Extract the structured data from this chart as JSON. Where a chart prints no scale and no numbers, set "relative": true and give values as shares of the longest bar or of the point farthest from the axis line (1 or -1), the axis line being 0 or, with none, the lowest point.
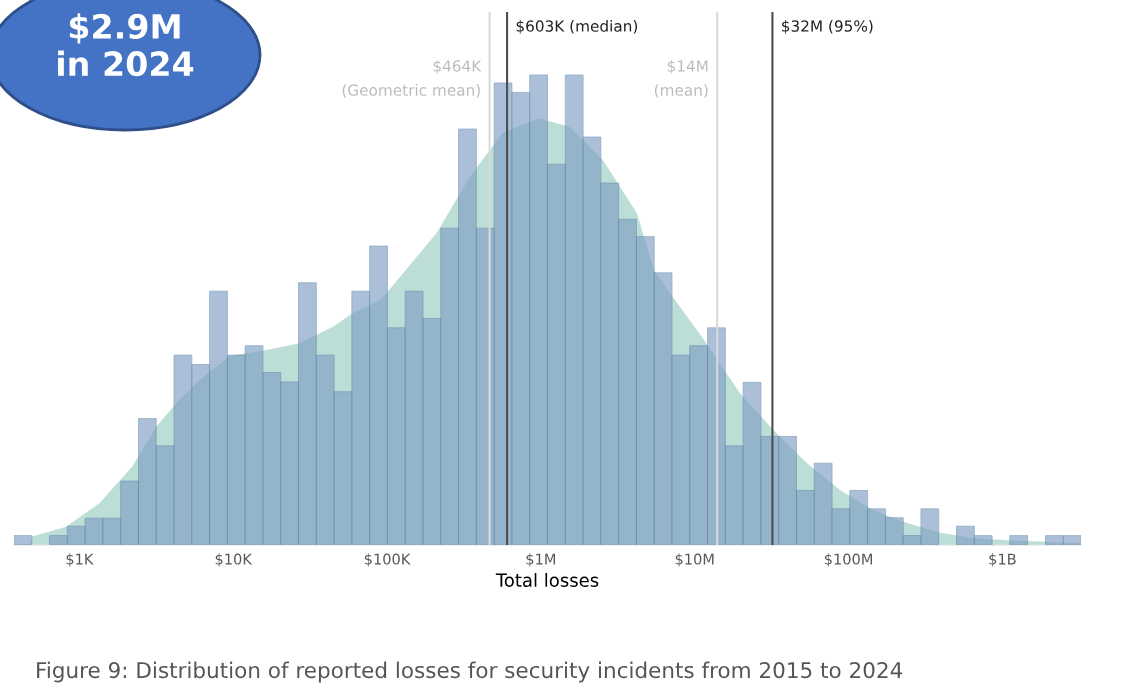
{
  "chart_data": {
    "type": "histogram",
    "relative": true,
    "log": "x",
    "xlabel": "Total losses",
    "xlim": [
      376,
      3243000000
    ],
    "xticks": [
      {
        "value": 1000,
        "label": "$1K"
      },
      {
        "value": 10000,
        "label": "$10K"
      },
      {
        "value": 100000,
        "label": "$100K"
      },
      {
        "value": 1000000,
        "label": "$1M"
      },
      {
        "value": 10000000,
        "label": "$10M"
      },
      {
        "value": 100000000,
        "label": "$100M"
      },
      {
        "value": 1000000000,
        "label": "$1B"
      }
    ],
    "tick_labels": "x",
    "grid": false,
    "series": [
      {
        "type": "area",
        "color": "#9fd0c6",
        "x": [
          473,
          494,
          819,
          1350,
          2210,
          3170,
          4280,
          6040,
          9470,
          16500,
          27000,
          44300,
          59700,
          89500,
          99300,
          210000,
          345000,
          565000,
          968000,
          1540000,
          2530000,
          4210000,
          5430000,
          6900000,
          11300000,
          19700000,
          32300000,
          53700000,
          88100000,
          144000000,
          240000000,
          394000000,
          646000000,
          1070000000,
          3210000000
        ],
        "values": [
          0,
          0.018,
          0.039,
          0.089,
          0.167,
          0.252,
          0.302,
          0.351,
          0.402,
          0.415,
          0.429,
          0.464,
          0.493,
          0.521,
          0.536,
          0.664,
          0.783,
          0.877,
          0.908,
          0.89,
          0.819,
          0.706,
          0.585,
          0.536,
          0.44,
          0.323,
          0.245,
          0.174,
          0.117,
          0.074,
          0.047,
          0.026,
          0.015,
          0.01,
          0.004
        ]
      },
      {
        "color": "#7f9fc4",
        "bins": [
          376,
          491,
          640,
          835,
          1090,
          1422,
          1856,
          2422,
          3161,
          4125,
          5383,
          7024,
          9166,
          11960,
          15610,
          20370,
          26580,
          34690,
          45270,
          59070,
          77090,
          100600,
          131300,
          171300,
          223600,
          291700,
          380700,
          496900,
          648400,
          846300,
          1104000,
          1441000,
          1881000,
          2454000,
          3203000,
          4178000,
          5453000,
          7117000,
          9286000,
          12120000,
          15810000,
          20640000,
          26930000,
          35150000,
          45860000,
          59840000,
          78100000,
          101900000,
          133000000,
          173600000,
          226500000,
          295500000,
          385700000,
          503200000,
          656800000,
          857000000,
          1118000000,
          1459000000,
          1905000000,
          2485000000,
          3243000000
        ],
        "values": [
          0.02,
          0,
          0.02,
          0.04,
          0.057,
          0.057,
          0.136,
          0.269,
          0.211,
          0.404,
          0.384,
          0.54,
          0.404,
          0.424,
          0.367,
          0.347,
          0.558,
          0.404,
          0.326,
          0.54,
          0.636,
          0.462,
          0.54,
          0.482,
          0.674,
          0.885,
          0.674,
          0.983,
          0.963,
          1.0,
          0.81,
          1.0,
          0.868,
          0.77,
          0.693,
          0.656,
          0.579,
          0.404,
          0.424,
          0.462,
          0.211,
          0.346,
          0.231,
          0.231,
          0.116,
          0.174,
          0.077,
          0.116,
          0.077,
          0.058,
          0.02,
          0.077,
          0,
          0.04,
          0.02,
          0,
          0.02,
          0,
          0.02,
          0.02
        ]
      }
    ],
    "ref_lines": [
      {
        "axis": "x",
        "value": 464000,
        "label": "$464K\n(Geometric mean)",
        "color": "#d9d9d9"
      },
      {
        "axis": "x",
        "value": 603000,
        "label": "$603K (median)",
        "color": "#4d4d4d"
      },
      {
        "axis": "x",
        "value": 14000000,
        "label": "$14M\n(mean)",
        "color": "#d9d9d9"
      },
      {
        "axis": "x",
        "value": 32000000,
        "label": "$32M (95%)",
        "color": "#4d4d4d"
      }
    ],
    "annotations": [
      "$2.9M\nin 2024",
      "Figure 9: Distribution of reported losses for security incidents from 2015 to 2024"
    ]
  }
}
